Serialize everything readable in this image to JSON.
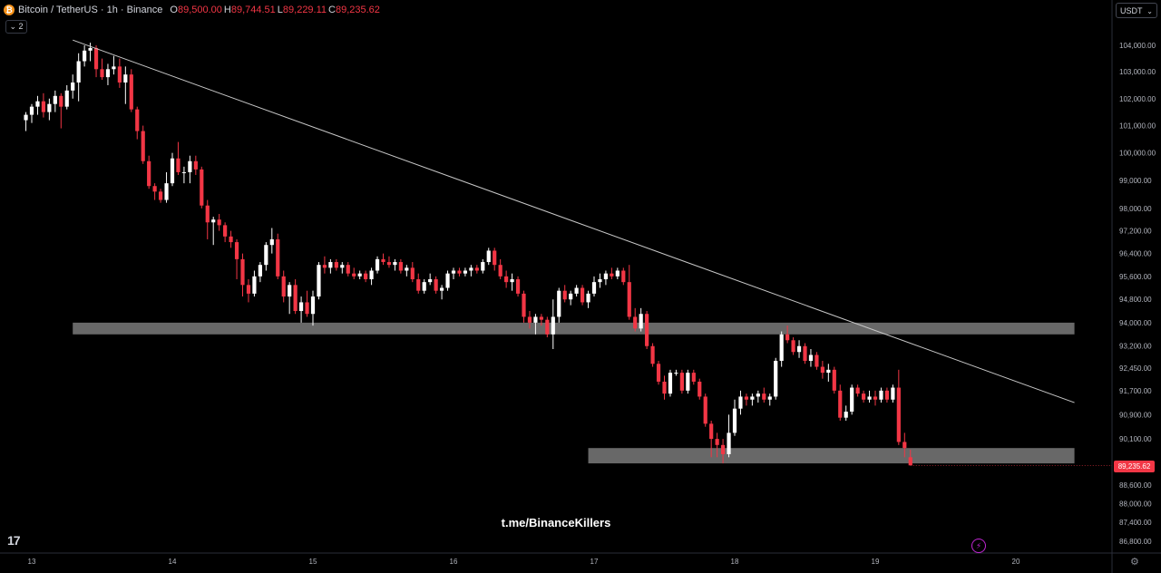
{
  "header": {
    "symbol": "Bitcoin / TetherUS · 1h · Binance",
    "open_label": "O",
    "open": "89,500.00",
    "high_label": "H",
    "high": "89,744.51",
    "low_label": "L",
    "low": "89,229.11",
    "close_label": "C",
    "close": "89,235.62",
    "coin_icon": "bitcoin-icon"
  },
  "collapse_label": "2",
  "currency": "USDT",
  "current_price": "89,235.62",
  "watermark": "t.me/BinanceKillers",
  "colors": {
    "up": "#ffffff",
    "down": "#f23645",
    "zone": "#7a7a7a",
    "trendline": "#c8c8c8"
  },
  "chart_data": {
    "type": "candlestick",
    "x_ticks": [
      "13",
      "14",
      "15",
      "16",
      "17",
      "18",
      "19",
      "20"
    ],
    "y_ticks": [
      "104,000.00",
      "103,000.00",
      "102,000.00",
      "101,000.00",
      "100,000.00",
      "99,000.00",
      "98,000.00",
      "97,200.00",
      "96,400.00",
      "95,600.00",
      "94,800.00",
      "94,000.00",
      "93,200.00",
      "92,450.00",
      "91,700.00",
      "90,900.00",
      "90,100.00",
      "88,600.00",
      "88,000.00",
      "87,400.00",
      "86,800.00"
    ],
    "time_start": "Dec 12 23:00",
    "time_step": "1h",
    "candles": [
      [
        101200,
        101500,
        100800,
        101400
      ],
      [
        101400,
        101800,
        101100,
        101700
      ],
      [
        101700,
        102100,
        101400,
        101900
      ],
      [
        101900,
        102200,
        101300,
        101500
      ],
      [
        101500,
        102000,
        101200,
        101800
      ],
      [
        101800,
        102300,
        101500,
        102100
      ],
      [
        102100,
        102200,
        100900,
        101700
      ],
      [
        101700,
        102500,
        101600,
        102300
      ],
      [
        102300,
        102900,
        102000,
        102600
      ],
      [
        102600,
        103700,
        101900,
        103400
      ],
      [
        103400,
        104000,
        103200,
        103800
      ],
      [
        103800,
        104100,
        103400,
        103900
      ],
      [
        103900,
        104000,
        102800,
        103100
      ],
      [
        103100,
        103500,
        102700,
        102800
      ],
      [
        102800,
        103300,
        102500,
        103100
      ],
      [
        103100,
        103600,
        102900,
        103200
      ],
      [
        103200,
        103500,
        102400,
        102600
      ],
      [
        102600,
        103200,
        101800,
        102900
      ],
      [
        102900,
        103100,
        101500,
        101600
      ],
      [
        101600,
        101700,
        100500,
        100800
      ],
      [
        100800,
        101000,
        99600,
        99700
      ],
      [
        99700,
        99900,
        98700,
        98800
      ],
      [
        98800,
        98900,
        98300,
        98600
      ],
      [
        98600,
        98700,
        98200,
        98300
      ],
      [
        98300,
        99300,
        98200,
        98900
      ],
      [
        98900,
        100000,
        98800,
        99800
      ],
      [
        99800,
        100400,
        99200,
        99300
      ],
      [
        99300,
        99500,
        98900,
        99300
      ],
      [
        99300,
        99900,
        98900,
        99700
      ],
      [
        99700,
        99900,
        99200,
        99400
      ],
      [
        99400,
        99500,
        98000,
        98100
      ],
      [
        98100,
        98300,
        96900,
        97500
      ],
      [
        97500,
        97700,
        96700,
        97600
      ],
      [
        97600,
        97800,
        97200,
        97400
      ],
      [
        97400,
        97500,
        96800,
        97000
      ],
      [
        97000,
        97200,
        96600,
        96800
      ],
      [
        96800,
        96900,
        95500,
        96200
      ],
      [
        96200,
        96400,
        94900,
        95300
      ],
      [
        95300,
        95500,
        94700,
        95000
      ],
      [
        95000,
        95800,
        94900,
        95600
      ],
      [
        95600,
        96100,
        95400,
        96000
      ],
      [
        96000,
        96800,
        95800,
        96700
      ],
      [
        96700,
        97300,
        96400,
        96900
      ],
      [
        96900,
        97100,
        95500,
        95600
      ],
      [
        95600,
        95800,
        94700,
        94900
      ],
      [
        94900,
        95400,
        94300,
        95300
      ],
      [
        95300,
        95500,
        94300,
        94400
      ],
      [
        94400,
        94900,
        94000,
        94700
      ],
      [
        94700,
        95100,
        94200,
        94300
      ],
      [
        94300,
        95100,
        93900,
        94900
      ],
      [
        94900,
        96100,
        94800,
        96000
      ],
      [
        96000,
        96300,
        95700,
        95900
      ],
      [
        95900,
        96200,
        95700,
        96100
      ],
      [
        96100,
        96200,
        95800,
        95900
      ],
      [
        95900,
        96100,
        95700,
        96000
      ],
      [
        96000,
        96100,
        95600,
        95700
      ],
      [
        95700,
        95900,
        95500,
        95600
      ],
      [
        95600,
        95800,
        95500,
        95700
      ],
      [
        95700,
        95800,
        95400,
        95500
      ],
      [
        95500,
        95900,
        95300,
        95800
      ],
      [
        95800,
        96300,
        95700,
        96200
      ],
      [
        96200,
        96400,
        96000,
        96100
      ],
      [
        96100,
        96300,
        95900,
        96000
      ],
      [
        96000,
        96200,
        95800,
        96100
      ],
      [
        96100,
        96200,
        95700,
        95800
      ],
      [
        95800,
        96000,
        95600,
        95900
      ],
      [
        95900,
        96100,
        95400,
        95500
      ],
      [
        95500,
        95700,
        95000,
        95100
      ],
      [
        95100,
        95500,
        95000,
        95400
      ],
      [
        95400,
        95700,
        95300,
        95500
      ],
      [
        95500,
        95600,
        95000,
        95100
      ],
      [
        95100,
        95300,
        94800,
        95200
      ],
      [
        95200,
        95800,
        95100,
        95700
      ],
      [
        95700,
        95900,
        95500,
        95800
      ],
      [
        95800,
        95900,
        95600,
        95700
      ],
      [
        95700,
        95900,
        95600,
        95800
      ],
      [
        95800,
        96000,
        95600,
        95900
      ],
      [
        95900,
        96000,
        95700,
        95800
      ],
      [
        95800,
        96200,
        95700,
        96100
      ],
      [
        96100,
        96600,
        96000,
        96500
      ],
      [
        96500,
        96600,
        95800,
        96000
      ],
      [
        96000,
        96200,
        95500,
        95600
      ],
      [
        95600,
        95800,
        95200,
        95400
      ],
      [
        95400,
        95700,
        95100,
        95500
      ],
      [
        95500,
        95600,
        94900,
        95000
      ],
      [
        95000,
        95100,
        94000,
        94200
      ],
      [
        94200,
        94400,
        93800,
        94000
      ],
      [
        94000,
        94300,
        93600,
        94200
      ],
      [
        94200,
        94300,
        93900,
        94100
      ],
      [
        94100,
        94200,
        93500,
        93600
      ],
      [
        93600,
        94800,
        93100,
        94200
      ],
      [
        94200,
        95200,
        94000,
        95100
      ],
      [
        95100,
        95300,
        94700,
        94800
      ],
      [
        94800,
        95100,
        94600,
        95000
      ],
      [
        95000,
        95300,
        94900,
        95200
      ],
      [
        95200,
        95300,
        94600,
        94700
      ],
      [
        94700,
        95100,
        94500,
        95000
      ],
      [
        95000,
        95600,
        94900,
        95400
      ],
      [
        95400,
        95700,
        95200,
        95500
      ],
      [
        95500,
        95800,
        95300,
        95700
      ],
      [
        95700,
        95900,
        95500,
        95600
      ],
      [
        95600,
        95900,
        95500,
        95800
      ],
      [
        95800,
        95900,
        95300,
        95400
      ],
      [
        95400,
        96000,
        94100,
        94200
      ],
      [
        94200,
        94500,
        93700,
        93800
      ],
      [
        93800,
        94500,
        93700,
        94300
      ],
      [
        94300,
        94400,
        93100,
        93200
      ],
      [
        93200,
        93300,
        92500,
        92600
      ],
      [
        92600,
        92700,
        91900,
        92000
      ],
      [
        92000,
        92200,
        91400,
        91600
      ],
      [
        91600,
        92400,
        91500,
        92300
      ],
      [
        92300,
        92400,
        92200,
        92300
      ],
      [
        92300,
        92400,
        91600,
        91700
      ],
      [
        91700,
        92400,
        91600,
        92300
      ],
      [
        92300,
        92400,
        91900,
        92000
      ],
      [
        92000,
        92100,
        91400,
        91500
      ],
      [
        91500,
        91600,
        90500,
        90600
      ],
      [
        90600,
        90700,
        89500,
        90100
      ],
      [
        90100,
        90300,
        89500,
        89900
      ],
      [
        89900,
        90100,
        89300,
        89600
      ],
      [
        89600,
        90900,
        89500,
        90300
      ],
      [
        90300,
        91400,
        90200,
        91100
      ],
      [
        91100,
        91700,
        90900,
        91500
      ],
      [
        91500,
        91600,
        91200,
        91400
      ],
      [
        91400,
        91600,
        91200,
        91500
      ],
      [
        91500,
        91700,
        91300,
        91600
      ],
      [
        91600,
        91800,
        91300,
        91400
      ],
      [
        91400,
        91600,
        91200,
        91500
      ],
      [
        91500,
        92800,
        91400,
        92700
      ],
      [
        92700,
        93700,
        92500,
        93600
      ],
      [
        93600,
        93900,
        93300,
        93400
      ],
      [
        93400,
        93500,
        92900,
        93000
      ],
      [
        93000,
        93400,
        92800,
        93200
      ],
      [
        93200,
        93300,
        92600,
        92700
      ],
      [
        92700,
        93100,
        92500,
        92900
      ],
      [
        92900,
        93000,
        92400,
        92500
      ],
      [
        92500,
        92700,
        92100,
        92300
      ],
      [
        92300,
        92600,
        92000,
        92400
      ],
      [
        92400,
        92500,
        91600,
        91700
      ],
      [
        91700,
        91900,
        90700,
        90800
      ],
      [
        90800,
        91200,
        90700,
        91000
      ],
      [
        91000,
        91900,
        90900,
        91800
      ],
      [
        91800,
        91900,
        91500,
        91600
      ],
      [
        91600,
        91700,
        91300,
        91400
      ],
      [
        91400,
        91700,
        91300,
        91500
      ],
      [
        91500,
        91700,
        91200,
        91400
      ],
      [
        91400,
        91800,
        91300,
        91700
      ],
      [
        91700,
        91800,
        91300,
        91400
      ],
      [
        91400,
        91900,
        91300,
        91800
      ],
      [
        91800,
        92400,
        89900,
        90000
      ],
      [
        90000,
        90300,
        89500,
        89800
      ],
      [
        89500,
        89744.51,
        89229.11,
        89235.62
      ]
    ],
    "trendline": [
      {
        "t": "Dec 13 07:00",
        "price": 104200
      },
      {
        "t": "Dec 20 10:00",
        "price": 91300
      }
    ],
    "zones": [
      {
        "t_start": "Dec 13 07:00",
        "t_end": "Dec 20 10:00",
        "low": 93600,
        "high": 94000
      },
      {
        "t_start": "Dec 16 23:00",
        "t_end": "Dec 20 10:00",
        "low": 89300,
        "high": 89800
      }
    ],
    "last_price": 89235.62
  }
}
